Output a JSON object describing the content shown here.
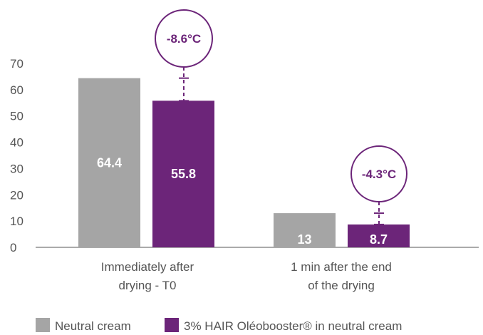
{
  "chart_data": {
    "type": "bar",
    "categories": [
      [
        "Immediately after",
        "drying - T0"
      ],
      [
        "1 min after the end",
        "of the drying"
      ]
    ],
    "series": [
      {
        "name": "Neutral cream",
        "color": "#a5a5a5",
        "values": [
          64.4,
          13
        ],
        "labels": [
          "64.4",
          "13"
        ]
      },
      {
        "name": "3% HAIR Oléobooster® in neutral cream",
        "color": "#6c2579",
        "values": [
          55.8,
          8.7
        ],
        "labels": [
          "55.8",
          "8.7"
        ]
      }
    ],
    "annotations": [
      "-8.6°C",
      "-4.3°C"
    ],
    "ylim": [
      0,
      70
    ],
    "yticks": [
      0,
      10,
      20,
      30,
      40,
      50,
      60,
      70
    ],
    "ytick_labels": [
      "0",
      "10",
      "20",
      "30",
      "40",
      "50",
      "60",
      "70"
    ],
    "legend_position": "bottom",
    "grid": false,
    "accent_color": "#6c2579"
  }
}
